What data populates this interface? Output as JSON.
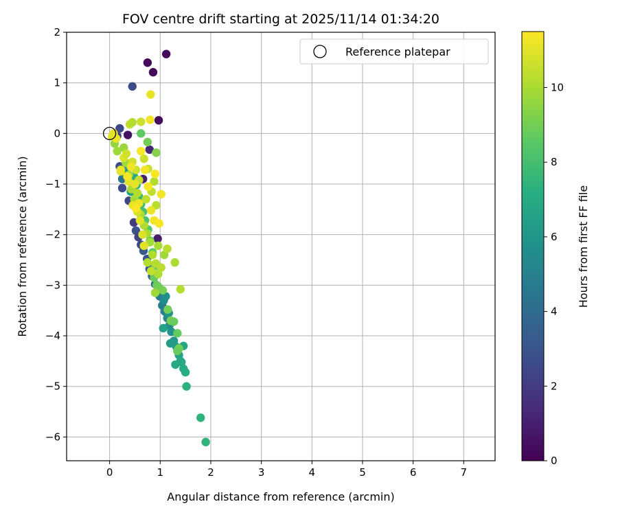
{
  "chart_data": {
    "type": "scatter",
    "title": "FOV centre drift starting at 2025/11/14 01:34:20",
    "xlabel": "Angular distance from reference (arcmin)",
    "ylabel": "Rotation from reference (arcmin)",
    "xlim": [
      -0.85,
      7.62
    ],
    "ylim": [
      -6.47,
      2.0
    ],
    "xticks": [
      0,
      1,
      2,
      3,
      4,
      5,
      6,
      7
    ],
    "yticks": [
      2,
      1,
      0,
      -1,
      -2,
      -3,
      -4,
      -5,
      -6
    ],
    "grid": true,
    "legend": {
      "placement": "top-right",
      "entries": [
        "Reference platepar"
      ]
    },
    "reference_point": {
      "x": 0.0,
      "y": 0.0
    },
    "colorbar": {
      "label": "Hours from first FF file",
      "colormap": "viridis",
      "range": [
        0,
        11.5
      ],
      "ticks": [
        0,
        2,
        4,
        6,
        8,
        10
      ]
    },
    "series": [
      {
        "color_by": "hours",
        "points": [
          [
            0.75,
            1.4,
            0.3
          ],
          [
            0.86,
            1.21,
            0.3
          ],
          [
            1.12,
            1.57,
            0.3
          ],
          [
            0.97,
            0.26,
            0.4
          ],
          [
            0.45,
            0.93,
            2.6
          ],
          [
            0.36,
            -0.03,
            0.6
          ],
          [
            0.79,
            -0.32,
            1.2
          ],
          [
            0.66,
            -0.9,
            1.0
          ],
          [
            0.95,
            -2.08,
            0.9
          ],
          [
            0.2,
            0.1,
            2.5
          ],
          [
            0.15,
            -0.05,
            2.3
          ],
          [
            0.2,
            -0.65,
            2.8
          ],
          [
            0.25,
            -1.08,
            2.6
          ],
          [
            0.38,
            -1.33,
            2.4
          ],
          [
            0.48,
            -1.76,
            2.0
          ],
          [
            0.52,
            -1.92,
            2.8
          ],
          [
            0.57,
            -2.05,
            2.2
          ],
          [
            0.62,
            -2.2,
            2.4
          ],
          [
            0.67,
            -2.32,
            3.2
          ],
          [
            0.74,
            -2.48,
            3.0
          ],
          [
            0.79,
            -2.68,
            3.3
          ],
          [
            0.84,
            -2.82,
            3.6
          ],
          [
            0.9,
            -2.98,
            4.0
          ],
          [
            0.96,
            -3.03,
            4.3
          ],
          [
            0.99,
            -3.22,
            4.7
          ],
          [
            1.04,
            -3.4,
            4.8
          ],
          [
            1.09,
            -3.52,
            5.0
          ],
          [
            1.14,
            -3.65,
            5.3
          ],
          [
            1.18,
            -3.8,
            5.6
          ],
          [
            1.22,
            -3.92,
            5.8
          ],
          [
            1.27,
            -4.1,
            6.1
          ],
          [
            1.32,
            -4.22,
            6.4
          ],
          [
            1.37,
            -4.38,
            6.6
          ],
          [
            1.42,
            -4.52,
            6.8
          ],
          [
            1.46,
            -4.65,
            7.0
          ],
          [
            1.5,
            -4.72,
            7.1
          ],
          [
            1.46,
            -4.2,
            6.8
          ],
          [
            1.4,
            -4.5,
            6.9
          ],
          [
            1.3,
            -4.57,
            6.9
          ],
          [
            1.52,
            -5.0,
            7.3
          ],
          [
            1.8,
            -5.62,
            7.4
          ],
          [
            1.9,
            -6.1,
            7.4
          ],
          [
            1.11,
            -3.22,
            5.7
          ],
          [
            1.25,
            -3.72,
            6.2
          ],
          [
            1.17,
            -3.55,
            5.9
          ],
          [
            1.07,
            -3.3,
            5.5
          ],
          [
            0.94,
            -3.12,
            5.0
          ],
          [
            1.2,
            -4.15,
            6.3
          ],
          [
            1.06,
            -3.85,
            6.6
          ],
          [
            0.25,
            -0.9,
            4.5
          ],
          [
            0.34,
            -0.73,
            6.2
          ],
          [
            0.42,
            -1.15,
            6.5
          ],
          [
            0.48,
            -0.85,
            7.0
          ],
          [
            0.53,
            -1.02,
            7.3
          ],
          [
            0.58,
            -1.25,
            7.6
          ],
          [
            0.62,
            -1.4,
            7.9
          ],
          [
            0.66,
            -1.55,
            8.1
          ],
          [
            0.7,
            -1.72,
            8.2
          ],
          [
            0.76,
            -1.9,
            8.4
          ],
          [
            0.8,
            -2.12,
            8.5
          ],
          [
            0.85,
            -2.35,
            8.6
          ],
          [
            0.9,
            -2.62,
            8.7
          ],
          [
            0.88,
            -2.85,
            8.8
          ],
          [
            0.93,
            -3.0,
            8.9
          ],
          [
            0.98,
            -3.05,
            9.0
          ],
          [
            1.05,
            -3.1,
            9.1
          ],
          [
            1.15,
            -3.48,
            9.0
          ],
          [
            1.21,
            -3.7,
            9.1
          ],
          [
            1.27,
            -3.72,
            8.8
          ],
          [
            1.34,
            -3.95,
            8.7
          ],
          [
            1.37,
            -4.25,
            9.0
          ],
          [
            1.34,
            -4.3,
            8.8
          ],
          [
            0.62,
            0.0,
            8.6
          ],
          [
            0.75,
            -0.17,
            9.0
          ],
          [
            0.92,
            -0.38,
            9.3
          ],
          [
            0.1,
            -0.2,
            9.6
          ],
          [
            0.15,
            -0.35,
            9.8
          ],
          [
            0.28,
            -0.28,
            9.7
          ],
          [
            0.32,
            -0.58,
            9.8
          ],
          [
            0.38,
            -0.82,
            9.9
          ],
          [
            0.43,
            -1.1,
            10.0
          ],
          [
            0.49,
            -1.3,
            9.9
          ],
          [
            0.55,
            -1.18,
            10.2
          ],
          [
            0.61,
            -1.6,
            10.0
          ],
          [
            0.68,
            -1.82,
            10.1
          ],
          [
            0.74,
            -1.98,
            10.0
          ],
          [
            0.8,
            -2.15,
            9.9
          ],
          [
            0.85,
            -2.4,
            10.1
          ],
          [
            0.91,
            -2.57,
            10.2
          ],
          [
            0.96,
            -2.22,
            10.0
          ],
          [
            1.08,
            -2.4,
            9.8
          ],
          [
            1.14,
            -2.28,
            10.3
          ],
          [
            1.29,
            -2.55,
            10.0
          ],
          [
            1.4,
            -3.08,
            10.2
          ],
          [
            0.96,
            -2.78,
            10.1
          ],
          [
            0.9,
            -3.15,
            9.8
          ],
          [
            1.02,
            -2.65,
            10.3
          ],
          [
            0.75,
            -2.55,
            10.2
          ],
          [
            0.82,
            -2.72,
            10.4
          ],
          [
            0.92,
            -1.42,
            10.3
          ],
          [
            0.83,
            -1.15,
            10.4
          ],
          [
            0.88,
            -0.95,
            10.2
          ],
          [
            0.76,
            -0.7,
            10.5
          ],
          [
            0.68,
            -0.5,
            10.6
          ],
          [
            0.72,
            -1.3,
            10.4
          ],
          [
            0.58,
            -0.92,
            10.5
          ],
          [
            0.52,
            -0.72,
            10.6
          ],
          [
            0.45,
            -0.56,
            10.7
          ],
          [
            0.4,
            0.18,
            10.4
          ],
          [
            0.45,
            0.22,
            10.2
          ],
          [
            0.62,
            0.23,
            10.6
          ],
          [
            0.22,
            -0.75,
            10.8
          ],
          [
            0.28,
            -0.48,
            10.9
          ],
          [
            0.33,
            -0.4,
            10.7
          ],
          [
            0.38,
            -0.95,
            11.0
          ],
          [
            0.46,
            -1.42,
            11.1
          ],
          [
            0.55,
            -1.55,
            10.8
          ],
          [
            0.6,
            -1.72,
            11.0
          ],
          [
            0.65,
            -2.0,
            10.9
          ],
          [
            0.81,
            0.77,
            11.1
          ],
          [
            0.8,
            0.27,
            11.3
          ],
          [
            0.08,
            0.0,
            11.1
          ],
          [
            0.05,
            -0.06,
            11.0
          ],
          [
            0.13,
            -0.1,
            11.2
          ],
          [
            0.22,
            -0.72,
            11.2
          ],
          [
            0.42,
            -0.66,
            11.3
          ],
          [
            0.5,
            -1.0,
            11.1
          ],
          [
            0.58,
            -1.38,
            11.2
          ],
          [
            0.62,
            -0.35,
            11.4
          ],
          [
            0.7,
            -0.72,
            11.3
          ],
          [
            0.76,
            -1.05,
            11.4
          ],
          [
            0.82,
            -1.52,
            11.2
          ],
          [
            0.88,
            -1.72,
            11.3
          ],
          [
            0.98,
            -1.78,
            11.4
          ],
          [
            1.02,
            -1.2,
            11.3
          ],
          [
            0.9,
            -0.8,
            11.4
          ],
          [
            0.68,
            -2.22,
            11.0
          ],
          [
            0.52,
            -1.48,
            11.5
          ],
          [
            0.35,
            -0.85,
            11.4
          ]
        ]
      }
    ]
  }
}
